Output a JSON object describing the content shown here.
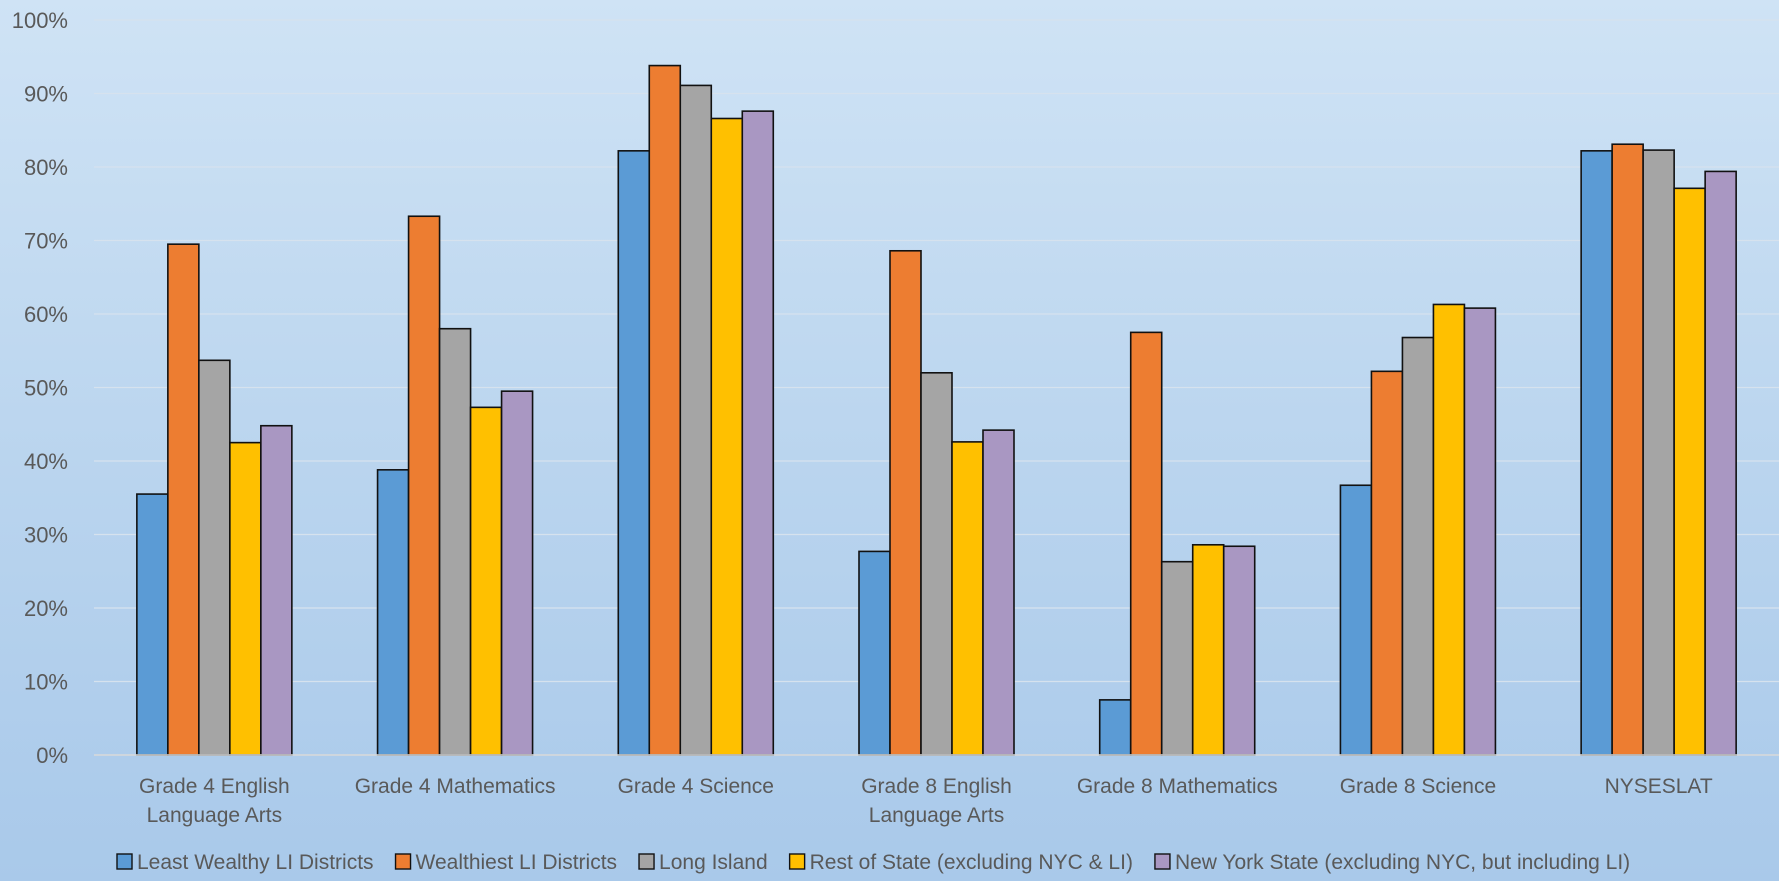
{
  "chart_data": {
    "type": "bar",
    "title": "",
    "xlabel": "",
    "ylabel": "",
    "ylim": [
      0,
      100
    ],
    "y_tick_values": [
      0,
      10,
      20,
      30,
      40,
      50,
      60,
      70,
      80,
      90,
      100
    ],
    "y_tick_labels": [
      "0%",
      "10%",
      "20%",
      "30%",
      "40%",
      "50%",
      "60%",
      "70%",
      "80%",
      "90%",
      "100%"
    ],
    "grid": true,
    "legend_position": "bottom",
    "categories": [
      [
        "Grade 4 English",
        "Language Arts"
      ],
      [
        "Grade 4 Mathematics"
      ],
      [
        "Grade 4 Science"
      ],
      [
        "Grade 8 English",
        "Language Arts"
      ],
      [
        "Grade 8 Mathematics"
      ],
      [
        "Grade 8 Science"
      ],
      [
        "NYSESLAT"
      ]
    ],
    "series": [
      {
        "name": "Least Wealthy LI Districts",
        "color": "#5b9bd5",
        "values": [
          35.5,
          38.8,
          82.2,
          27.7,
          7.5,
          36.7,
          82.2
        ]
      },
      {
        "name": "Wealthiest LI Districts",
        "color": "#ed7d31",
        "values": [
          69.5,
          73.3,
          93.8,
          68.6,
          57.5,
          52.2,
          83.1
        ]
      },
      {
        "name": "Long Island",
        "color": "#a5a5a5",
        "values": [
          53.7,
          58.0,
          91.1,
          52.0,
          26.3,
          56.8,
          82.3
        ]
      },
      {
        "name": "Rest of State (excluding NYC & LI)",
        "color": "#ffc000",
        "values": [
          42.5,
          47.3,
          86.6,
          42.6,
          28.6,
          61.3,
          77.1
        ]
      },
      {
        "name": "New York State (excluding NYC, but including LI)",
        "color": "#a997c2",
        "values": [
          44.8,
          49.5,
          87.6,
          44.2,
          28.4,
          60.8,
          79.4
        ]
      }
    ]
  }
}
